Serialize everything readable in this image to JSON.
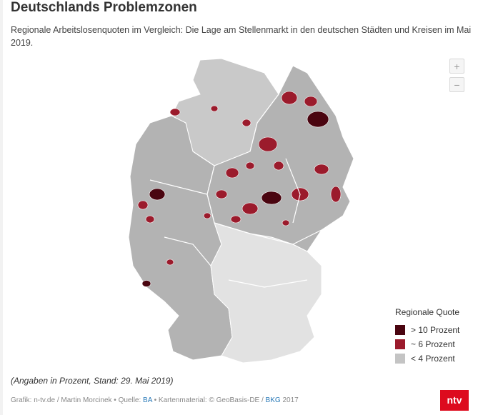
{
  "title": "Deutschlands Problemzonen",
  "subtitle": "Regionale Arbeitslosenquoten im Vergleich: Die Lage am Stellenmarkt in den deutschen Städten und Kreisen im Mai 2019.",
  "zoom": {
    "in_label": "+",
    "out_label": "−"
  },
  "legend": {
    "title": "Regionale Quote",
    "items": [
      {
        "label": "> 10 Prozent",
        "color": "#4a0510"
      },
      {
        "label": "~ 6 Prozent",
        "color": "#9b1b2c"
      },
      {
        "label": "< 4 Prozent",
        "color": "#c4c4c4"
      }
    ]
  },
  "map": {
    "base_color": "#c9c9c9",
    "low_color": "#e2e2e2",
    "mid_color": "#b3b3b3",
    "high_color": "#9b1b2c",
    "very_high_color": "#4a0510",
    "border_color": "#ffffff"
  },
  "note": "(Angaben in Prozent, Stand: 29. Mai 2019)",
  "credits": {
    "prefix": "Grafik: n-tv.de / Martin Morcinek • Quelle: ",
    "source": "BA",
    "middle": " • Kartenmaterial: © GeoBasis-DE / ",
    "map_source": "BKG",
    "year": " 2017"
  },
  "logo": "ntv"
}
